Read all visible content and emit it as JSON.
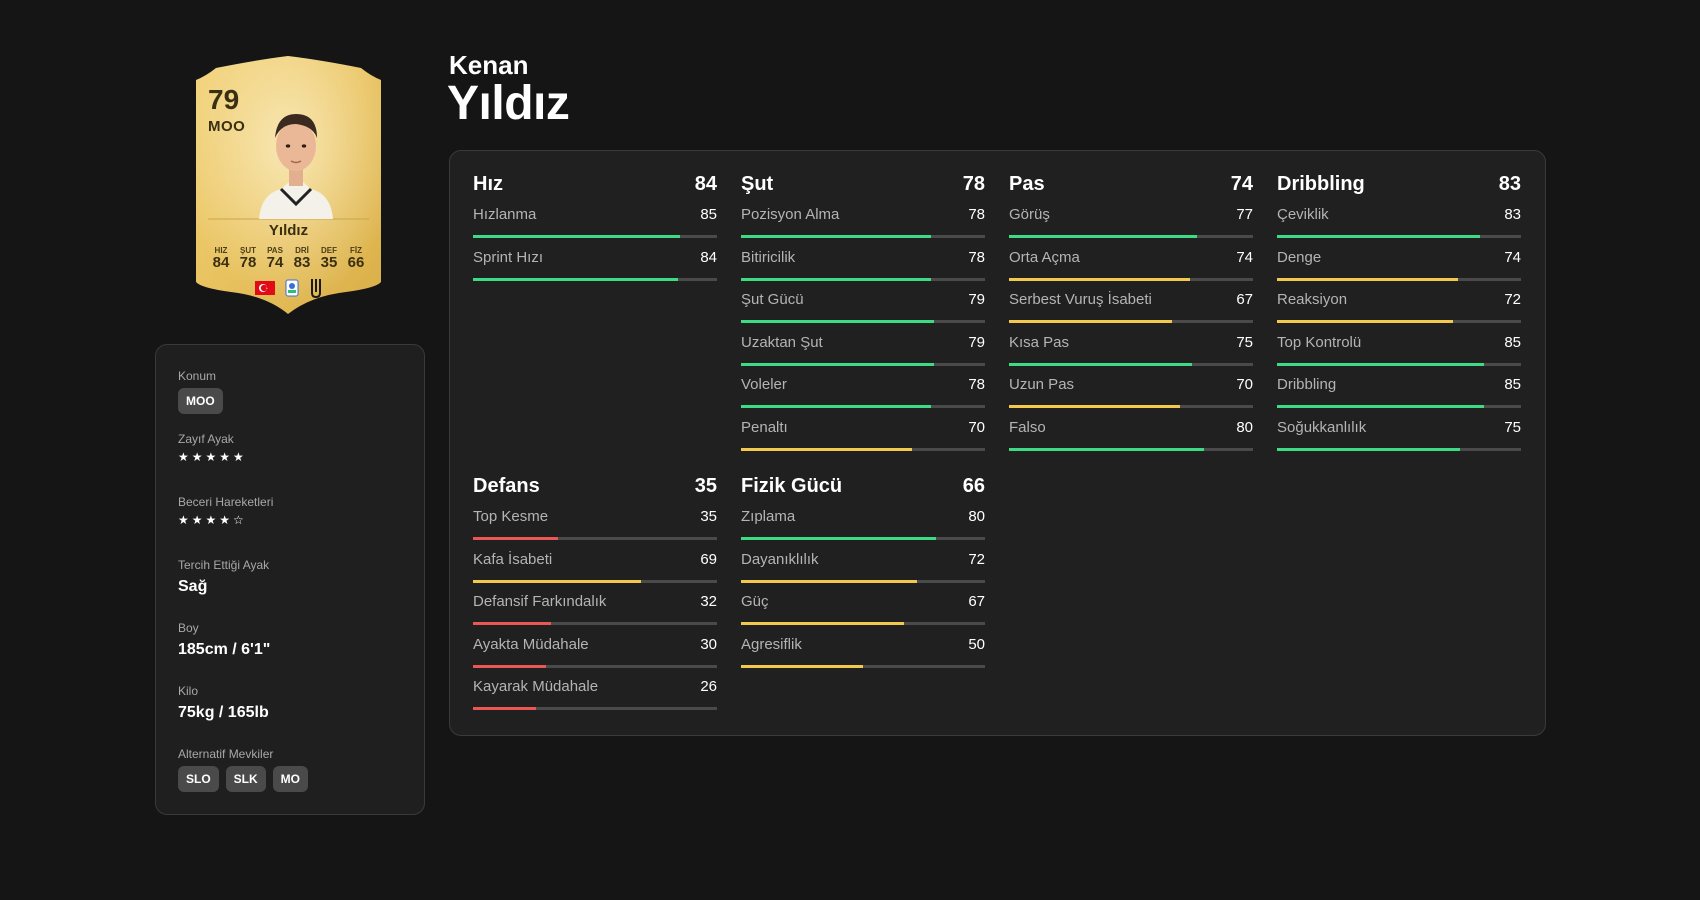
{
  "player": {
    "first_name": "Kenan",
    "last_name": "Yıldız"
  },
  "card": {
    "rating": "79",
    "position": "MOO",
    "name": "Yıldız",
    "stats": [
      {
        "label": "HIZ",
        "value": "84"
      },
      {
        "label": "ŞUT",
        "value": "78"
      },
      {
        "label": "PAS",
        "value": "74"
      },
      {
        "label": "DRİ",
        "value": "83"
      },
      {
        "label": "DEF",
        "value": "35"
      },
      {
        "label": "FİZ",
        "value": "66"
      }
    ],
    "badges": [
      "turkey-flag-icon",
      "serie-a-icon",
      "juventus-icon"
    ]
  },
  "info": {
    "position_label": "Konum",
    "position_value": "MOO",
    "weak_foot_label": "Zayıf Ayak",
    "weak_foot_stars": "★★★★★",
    "skill_moves_label": "Beceri Hareketleri",
    "skill_moves_stars": "★★★★☆",
    "preferred_foot_label": "Tercih Ettiği Ayak",
    "preferred_foot_value": "Sağ",
    "height_label": "Boy",
    "height_value": "185cm / 6'1\"",
    "weight_label": "Kilo",
    "weight_value": "75kg / 165lb",
    "alt_positions_label": "Alternatif Mevkiler",
    "alt_positions": [
      "SLO",
      "SLK",
      "MO"
    ]
  },
  "colors": {
    "high": "#3ddc84",
    "mid": "#f2c94c",
    "low": "#eb5757",
    "track": "#4a4a4a"
  },
  "groups": [
    {
      "title": "Hız",
      "value": "84",
      "attributes": [
        {
          "name": "Hızlanma",
          "value": 85
        },
        {
          "name": "Sprint Hızı",
          "value": 84
        }
      ]
    },
    {
      "title": "Şut",
      "value": "78",
      "attributes": [
        {
          "name": "Pozisyon Alma",
          "value": 78
        },
        {
          "name": "Bitiricilik",
          "value": 78
        },
        {
          "name": "Şut Gücü",
          "value": 79
        },
        {
          "name": "Uzaktan Şut",
          "value": 79
        },
        {
          "name": "Voleler",
          "value": 78
        },
        {
          "name": "Penaltı",
          "value": 70
        }
      ]
    },
    {
      "title": "Pas",
      "value": "74",
      "attributes": [
        {
          "name": "Görüş",
          "value": 77
        },
        {
          "name": "Orta Açma",
          "value": 74
        },
        {
          "name": "Serbest Vuruş İsabeti",
          "value": 67
        },
        {
          "name": "Kısa Pas",
          "value": 75
        },
        {
          "name": "Uzun Pas",
          "value": 70
        },
        {
          "name": "Falso",
          "value": 80
        }
      ]
    },
    {
      "title": "Dribbling",
      "value": "83",
      "attributes": [
        {
          "name": "Çeviklik",
          "value": 83
        },
        {
          "name": "Denge",
          "value": 74
        },
        {
          "name": "Reaksiyon",
          "value": 72
        },
        {
          "name": "Top Kontrolü",
          "value": 85
        },
        {
          "name": "Dribbling",
          "value": 85
        },
        {
          "name": "Soğukkanlılık",
          "value": 75
        }
      ]
    },
    {
      "title": "Defans",
      "value": "35",
      "attributes": [
        {
          "name": "Top Kesme",
          "value": 35
        },
        {
          "name": "Kafa İsabeti",
          "value": 69
        },
        {
          "name": "Defansif Farkındalık",
          "value": 32
        },
        {
          "name": "Ayakta Müdahale",
          "value": 30
        },
        {
          "name": "Kayarak Müdahale",
          "value": 26
        }
      ]
    },
    {
      "title": "Fizik Gücü",
      "value": "66",
      "attributes": [
        {
          "name": "Zıplama",
          "value": 80
        },
        {
          "name": "Dayanıklılık",
          "value": 72
        },
        {
          "name": "Güç",
          "value": 67
        },
        {
          "name": "Agresiflik",
          "value": 50
        }
      ]
    }
  ]
}
